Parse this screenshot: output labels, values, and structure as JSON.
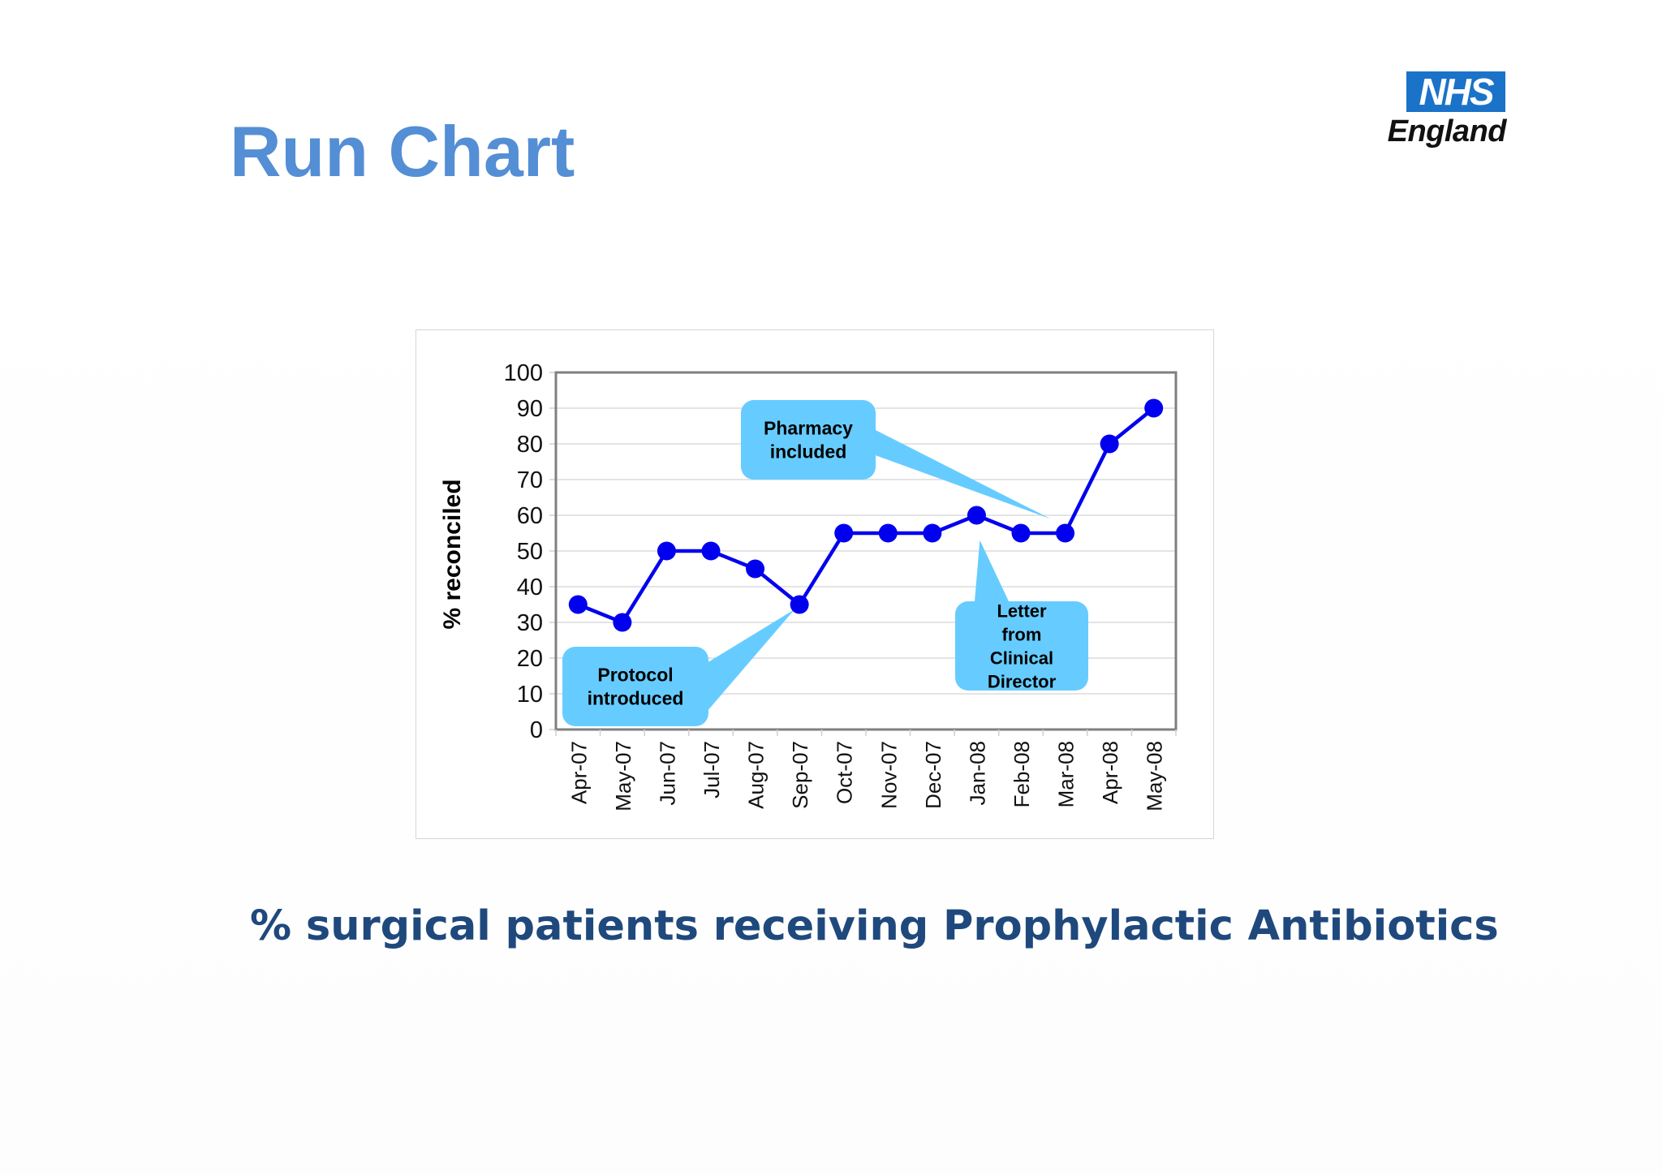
{
  "slide": {
    "title": "Run Chart",
    "subtitle": "% surgical patients receiving Prophylactic Antibiotics",
    "logo": {
      "box_text": "NHS",
      "text": "England",
      "box_color": "#1a73c8"
    },
    "colors": {
      "title": "#548ed5",
      "subtitle": "#1f497d",
      "series": "#0000ee",
      "callout": "#66ccff"
    }
  },
  "chart_data": {
    "type": "line",
    "title": "",
    "xlabel": "",
    "ylabel": "% reconciled",
    "ylim": [
      0,
      100
    ],
    "yticks": [
      0,
      10,
      20,
      30,
      40,
      50,
      60,
      70,
      80,
      90,
      100
    ],
    "grid": true,
    "legend": "none",
    "categories": [
      "Apr-07",
      "May-07",
      "Jun-07",
      "Jul-07",
      "Aug-07",
      "Sep-07",
      "Oct-07",
      "Nov-07",
      "Dec-07",
      "Jan-08",
      "Feb-08",
      "Mar-08",
      "Apr-08",
      "May-08"
    ],
    "series": [
      {
        "name": "% reconciled",
        "values": [
          35,
          30,
          50,
          50,
          45,
          35,
          55,
          55,
          55,
          60,
          55,
          55,
          80,
          90
        ]
      }
    ],
    "annotations": [
      {
        "text": "Protocol introduced",
        "lines": [
          "Protocol",
          "introduced"
        ],
        "points_to": "Sep-07"
      },
      {
        "text": "Pharmacy included",
        "lines": [
          "Pharmacy",
          "included"
        ],
        "points_to": "Mar-08"
      },
      {
        "text": "Letter from Clinical Director",
        "lines": [
          "Letter",
          "from",
          "Clinical",
          "Director"
        ],
        "points_to": "Jan-08"
      }
    ]
  }
}
